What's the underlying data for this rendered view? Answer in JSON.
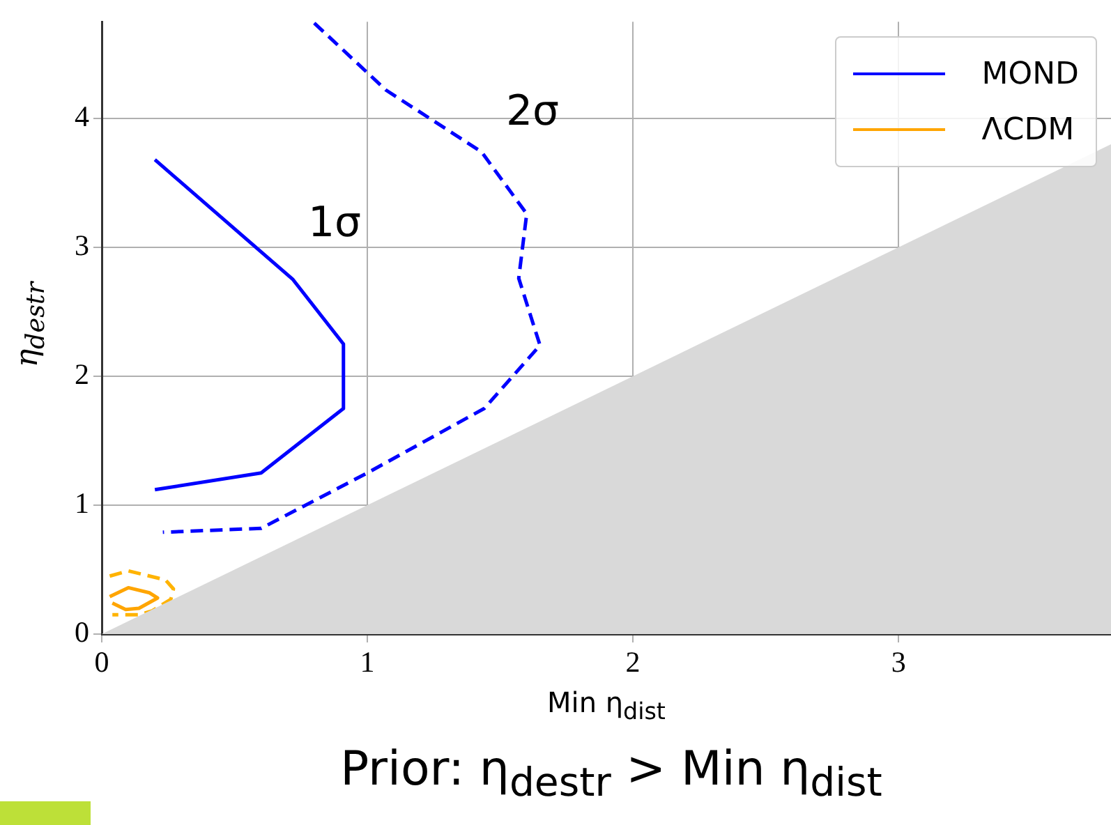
{
  "chart_data": {
    "type": "line",
    "xlabel": "Min η$_{dist}$",
    "ylabel": "η$_{destr}$",
    "xlim": [
      0,
      3.8
    ],
    "ylim": [
      0,
      4.75
    ],
    "xticks": [
      0,
      1,
      2,
      3
    ],
    "yticks": [
      0,
      1,
      2,
      3,
      4
    ],
    "grid": true,
    "legend": "top right",
    "marker": "none",
    "series": [
      {
        "type": "area",
        "color": "#d9d9d9",
        "x": [
          0,
          3.8
        ],
        "values": [
          0,
          3.8
        ]
      },
      {
        "name": "MOND",
        "color": "#0000ff",
        "line_style": "solid",
        "x": [
          0.2,
          0.58,
          0.72,
          0.91,
          0.91,
          0.6,
          0.2
        ],
        "values": [
          3.68,
          3.0,
          2.75,
          2.25,
          1.75,
          1.25,
          1.12
        ]
      },
      {
        "color": "#0000ff",
        "line_style": "dashed",
        "x": [
          0.8,
          1.07,
          1.43,
          1.6,
          1.57,
          1.65,
          1.44,
          1.0,
          0.6,
          0.23
        ],
        "values": [
          4.74,
          4.22,
          3.74,
          3.26,
          2.76,
          2.24,
          1.75,
          1.25,
          0.82,
          0.79
        ]
      },
      {
        "name": "ΛCDM",
        "color": "#ffa500",
        "line_style": "solid",
        "x": [
          0.03,
          0.1,
          0.18,
          0.21,
          0.14,
          0.09,
          0.04
        ],
        "values": [
          0.29,
          0.36,
          0.32,
          0.28,
          0.2,
          0.19,
          0.24
        ]
      },
      {
        "color": "#ffb300",
        "line_style": "dashed",
        "x": [
          0.03,
          0.1,
          0.24,
          0.27,
          0.26,
          0.19,
          0.14,
          0.04
        ],
        "values": [
          0.45,
          0.49,
          0.42,
          0.35,
          0.27,
          0.18,
          0.15,
          0.15
        ]
      }
    ],
    "annotations": [
      "1σ",
      "2σ",
      "Prior: η$_{destr}$ > Min η$_{dist}$"
    ]
  }
}
